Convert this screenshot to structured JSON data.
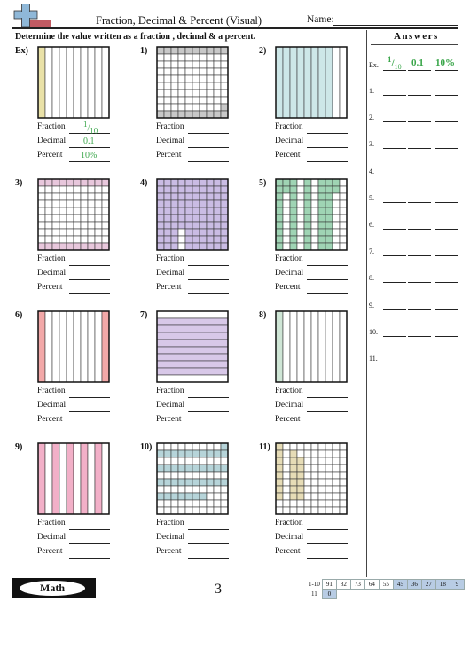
{
  "header": {
    "title": "Fraction, Decimal & Percent (Visual)",
    "name_label": "Name:",
    "instructions": "Determine the value written as a fraction , decimal & a percent."
  },
  "labels": {
    "fraction": "Fraction",
    "decimal": "Decimal",
    "percent": "Percent"
  },
  "example": {
    "fraction_num": "1",
    "fraction_den": "10",
    "decimal": "0.1",
    "percent": "10%"
  },
  "problems": [
    {
      "label": "Ex)",
      "cols": 10,
      "rows": 1,
      "shade": "#e9e1a7",
      "filled": 1
    },
    {
      "label": "1)",
      "cols": 10,
      "rows": 10,
      "shade": "#c8c8c8",
      "filled": 24
    },
    {
      "label": "2)",
      "cols": 10,
      "rows": 1,
      "shade": "#cde7e8",
      "filled": 8
    },
    {
      "label": "3)",
      "cols": 10,
      "rows": 10,
      "shade": "#e8c7dc",
      "filled": 20
    },
    {
      "label": "4)",
      "cols": 10,
      "rows": 10,
      "shade": "#cabce4",
      "filled": 97
    },
    {
      "label": "5)",
      "cols": 10,
      "rows": 10,
      "shade": "#9fd4b4",
      "filled": 62
    },
    {
      "label": "6)",
      "cols": 10,
      "rows": 1,
      "shade": "#f2a8a8",
      "filled": 2
    },
    {
      "label": "7)",
      "cols": 1,
      "rows": 10,
      "shade": "#d8c8e8",
      "filled": 8
    },
    {
      "label": "8)",
      "cols": 10,
      "rows": 1,
      "shade": "#cfe6d6",
      "filled": 1
    },
    {
      "label": "9)",
      "cols": 10,
      "rows": 1,
      "shade": "#f2b0c8",
      "filled": 5
    },
    {
      "label": "10)",
      "cols": 10,
      "rows": 10,
      "shade": "#b6d4d9",
      "filled": 44
    },
    {
      "label": "11)",
      "cols": 10,
      "rows": 10,
      "shade": "#e6dcb6",
      "filled": 22
    }
  ],
  "answers": {
    "title": "Answers",
    "ex_label": "Ex.",
    "numbers": [
      "1.",
      "2.",
      "3.",
      "4.",
      "5.",
      "6.",
      "7.",
      "8.",
      "9.",
      "10.",
      "11."
    ]
  },
  "footer": {
    "brand": "Math",
    "page": "3",
    "score_range_1": "1-10",
    "score_range_2": "11",
    "scores_row1": [
      "91",
      "82",
      "73",
      "64",
      "55",
      "45",
      "36",
      "27",
      "18",
      "9"
    ],
    "scores_row2": [
      "0"
    ]
  }
}
